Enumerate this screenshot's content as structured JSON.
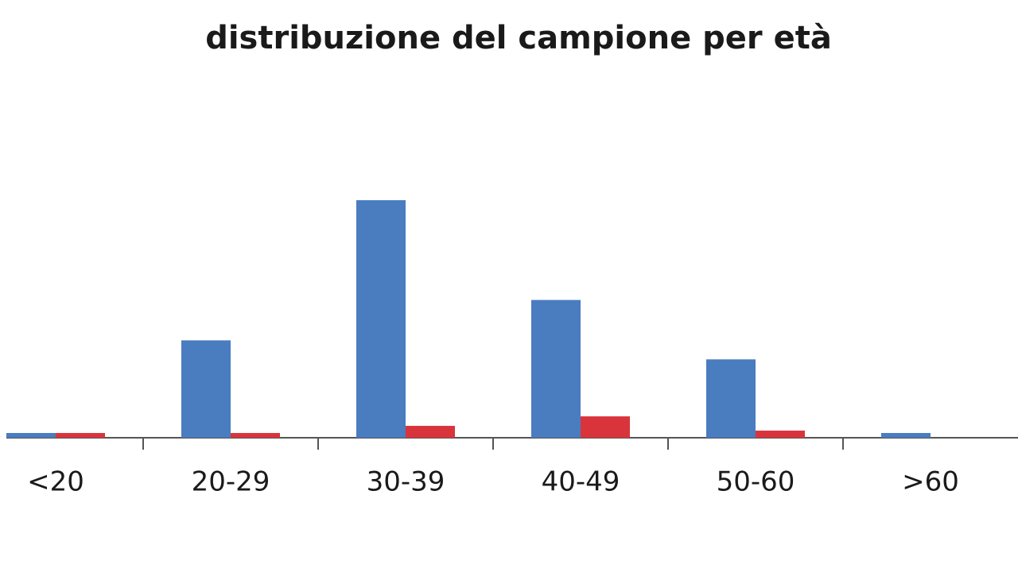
{
  "chart_data": {
    "type": "bar",
    "title": "distribuzione del campione per età",
    "categories": [
      "<20",
      "20-29",
      "30-39",
      "40-49",
      "50-60",
      ">60"
    ],
    "series": [
      {
        "color": "#4a7cc0",
        "values": [
          2,
          41,
          100,
          58,
          33,
          2
        ]
      },
      {
        "color": "#d9343c",
        "values": [
          2,
          2,
          5,
          9,
          3,
          0
        ]
      }
    ]
  }
}
